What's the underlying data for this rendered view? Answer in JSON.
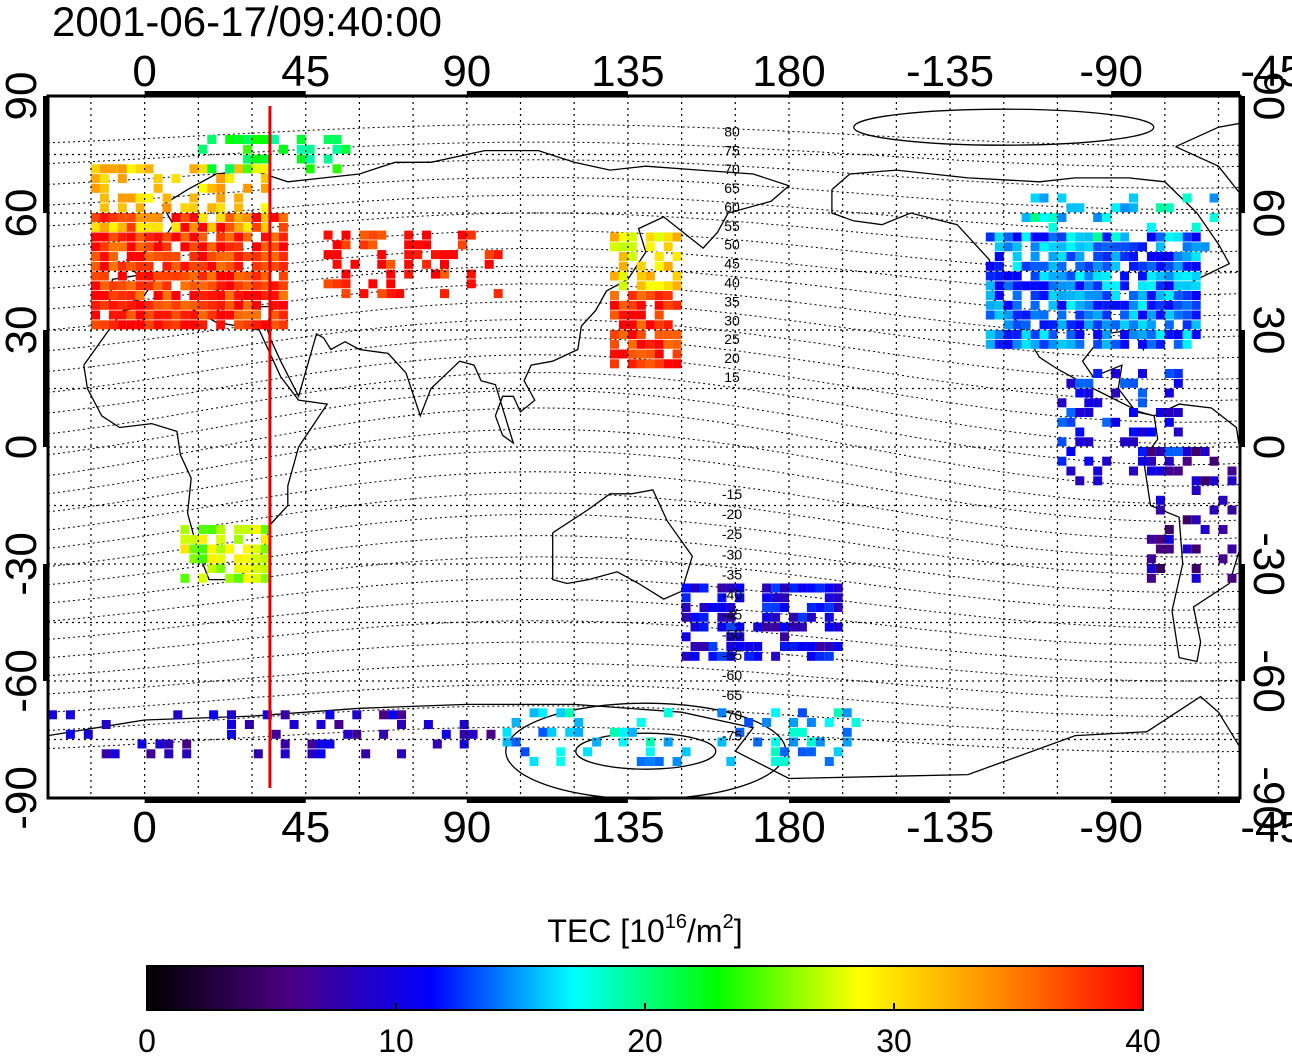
{
  "title": "2001-06-17/09:40:00",
  "map": {
    "lon_start": -27,
    "lon_end": 306,
    "lat_min": -90,
    "lat_max": 90,
    "lon_ticks": [
      {
        "value": 0,
        "label": "0"
      },
      {
        "value": 45,
        "label": "45"
      },
      {
        "value": 90,
        "label": "90"
      },
      {
        "value": 135,
        "label": "135"
      },
      {
        "value": 180,
        "label": "180"
      },
      {
        "value": 225,
        "label": "-135"
      },
      {
        "value": 270,
        "label": "-90"
      },
      {
        "value": 315,
        "label": "-45"
      }
    ],
    "lat_ticks": [
      {
        "value": 90,
        "label": "90"
      },
      {
        "value": 60,
        "label": "60"
      },
      {
        "value": 30,
        "label": "30"
      },
      {
        "value": 0,
        "label": "0"
      },
      {
        "value": -30,
        "label": "-30"
      },
      {
        "value": -60,
        "label": "-60"
      },
      {
        "value": -90,
        "label": "-90"
      }
    ],
    "grid": true,
    "terminator_lon": 35,
    "magnetic_labels": [
      "80",
      "75",
      "70",
      "65",
      "60",
      "55",
      "50",
      "45",
      "40",
      "35",
      "30",
      "25",
      "20",
      "15",
      "-15",
      "-20",
      "-25",
      "-30",
      "-35",
      "-40",
      "-45",
      "-50",
      "-55",
      "-60",
      "-65",
      "-70",
      "-75"
    ],
    "tec_regions": [
      {
        "lon": [
          -15,
          40
        ],
        "lat": [
          30,
          60
        ],
        "tec": 38,
        "density": 0.9
      },
      {
        "lon": [
          -15,
          35
        ],
        "lat": [
          55,
          72
        ],
        "tec": 31,
        "density": 0.5
      },
      {
        "lon": [
          15,
          60
        ],
        "lat": [
          70,
          80
        ],
        "tec": 22,
        "density": 0.3
      },
      {
        "lon": [
          50,
          100
        ],
        "lat": [
          38,
          55
        ],
        "tec": 39,
        "density": 0.4
      },
      {
        "lon": [
          130,
          150
        ],
        "lat": [
          20,
          40
        ],
        "tec": 38,
        "density": 0.8
      },
      {
        "lon": [
          130,
          150
        ],
        "lat": [
          40,
          55
        ],
        "tec": 30,
        "density": 0.6
      },
      {
        "lon": [
          235,
          295
        ],
        "lat": [
          25,
          55
        ],
        "tec": 14,
        "density": 0.85
      },
      {
        "lon": [
          245,
          300
        ],
        "lat": [
          50,
          65
        ],
        "tec": 17,
        "density": 0.3
      },
      {
        "lon": [
          10,
          35
        ],
        "lat": [
          -35,
          -20
        ],
        "tec": 27,
        "density": 0.7
      },
      {
        "lon": [
          150,
          195
        ],
        "lat": [
          -55,
          -35
        ],
        "tec": 10,
        "density": 0.6
      },
      {
        "lon": [
          280,
          320
        ],
        "lat": [
          -35,
          0
        ],
        "tec": 7,
        "density": 0.3
      },
      {
        "lon": [
          -27,
          100
        ],
        "lat": [
          -80,
          -68
        ],
        "tec": 8,
        "density": 0.25
      },
      {
        "lon": [
          100,
          200
        ],
        "lat": [
          -82,
          -68
        ],
        "tec": 16,
        "density": 0.25
      },
      {
        "lon": [
          255,
          290
        ],
        "lat": [
          -10,
          20
        ],
        "tec": 11,
        "density": 0.35
      }
    ]
  },
  "colorbar": {
    "label_main": "TEC  [10",
    "label_sup1": "16",
    "label_mid": "/m",
    "label_sup2": "2",
    "label_end": "]",
    "min": 0,
    "max": 40,
    "ticks": [
      "0",
      "10",
      "20",
      "30",
      "40"
    ],
    "colors": [
      "#000000",
      "#4b0082",
      "#0000ff",
      "#00ffff",
      "#00ff00",
      "#ffff00",
      "#ff8800",
      "#ff0000"
    ]
  },
  "colors": {
    "terminator": "#e00000",
    "grid": "#000000",
    "frame": "#000000"
  }
}
